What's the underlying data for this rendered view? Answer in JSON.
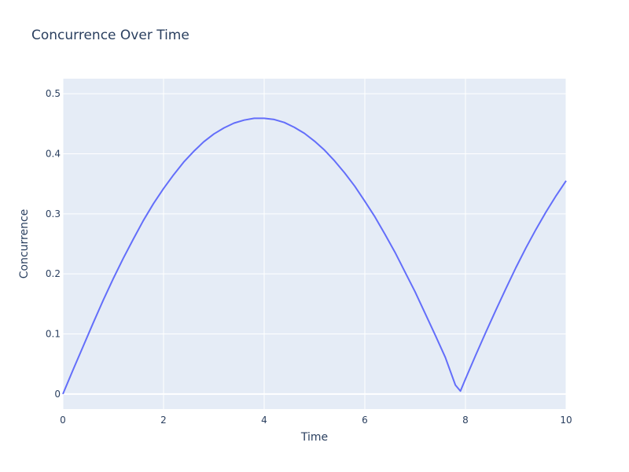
{
  "chart_data": {
    "type": "line",
    "title": "Concurrence Over Time",
    "xlabel": "Time",
    "ylabel": "Concurrence",
    "xlim": [
      0,
      10
    ],
    "ylim": [
      -0.025,
      0.525
    ],
    "grid": true,
    "colors": {
      "plot_bg": "#e5ecf6",
      "grid": "#ffffff",
      "line": "#636efa",
      "text": "#2a3f5f"
    },
    "x_ticks": [
      {
        "value": 0,
        "label": "0"
      },
      {
        "value": 2,
        "label": "2"
      },
      {
        "value": 4,
        "label": "4"
      },
      {
        "value": 6,
        "label": "6"
      },
      {
        "value": 8,
        "label": "8"
      },
      {
        "value": 10,
        "label": "10"
      }
    ],
    "y_ticks": [
      {
        "value": 0,
        "label": "0"
      },
      {
        "value": 0.1,
        "label": "0.1"
      },
      {
        "value": 0.2,
        "label": "0.2"
      },
      {
        "value": 0.3,
        "label": "0.3"
      },
      {
        "value": 0.4,
        "label": "0.4"
      },
      {
        "value": 0.5,
        "label": "0.5"
      }
    ],
    "series": [
      {
        "x": [
          0,
          0.2,
          0.4,
          0.6,
          0.8,
          1.0,
          1.2,
          1.4,
          1.6,
          1.8,
          2.0,
          2.2,
          2.4,
          2.6,
          2.8,
          3.0,
          3.2,
          3.4,
          3.6,
          3.8,
          4.0,
          4.2,
          4.4,
          4.6,
          4.8,
          5.0,
          5.2,
          5.4,
          5.6,
          5.8,
          6.0,
          6.2,
          6.4,
          6.6,
          6.8,
          7.0,
          7.2,
          7.4,
          7.6,
          7.8,
          7.9,
          8.0,
          8.2,
          8.4,
          8.6,
          8.8,
          9.0,
          9.2,
          9.4,
          9.6,
          9.8,
          10.0
        ],
        "y": [
          0,
          0.04,
          0.079,
          0.118,
          0.156,
          0.192,
          0.226,
          0.258,
          0.289,
          0.317,
          0.342,
          0.365,
          0.386,
          0.404,
          0.42,
          0.433,
          0.443,
          0.451,
          0.456,
          0.459,
          0.459,
          0.457,
          0.452,
          0.444,
          0.434,
          0.421,
          0.406,
          0.388,
          0.368,
          0.346,
          0.321,
          0.295,
          0.266,
          0.236,
          0.203,
          0.17,
          0.134,
          0.098,
          0.061,
          0.015,
          0.005,
          0.025,
          0.064,
          0.102,
          0.139,
          0.175,
          0.21,
          0.243,
          0.274,
          0.303,
          0.33,
          0.355
        ]
      }
    ]
  }
}
